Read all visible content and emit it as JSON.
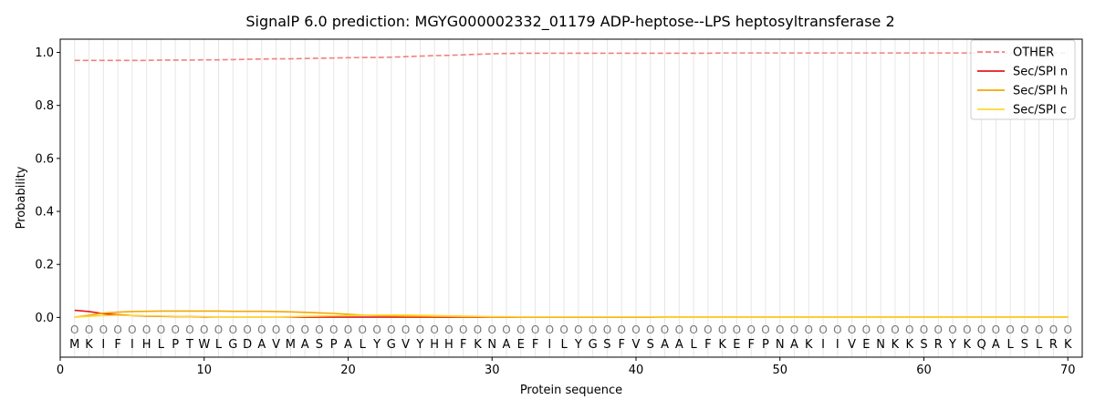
{
  "chart_data": {
    "type": "line",
    "title": "SignalP 6.0 prediction: MGYG000002332_01179 ADP-heptose--LPS heptosyltransferase 2",
    "xlabel": "Protein sequence",
    "ylabel": "Probability",
    "xlim": [
      0,
      71
    ],
    "ylim": [
      -0.15,
      1.05
    ],
    "xticks": [
      0,
      10,
      20,
      30,
      40,
      50,
      60,
      70
    ],
    "yticks": [
      0.0,
      0.2,
      0.4,
      0.6,
      0.8,
      1.0
    ],
    "legend_position": "top-right",
    "sequence": [
      "M",
      "K",
      "I",
      "F",
      "I",
      "H",
      "L",
      "P",
      "T",
      "W",
      "L",
      "G",
      "D",
      "A",
      "V",
      "M",
      "A",
      "S",
      "P",
      "A",
      "L",
      "Y",
      "G",
      "V",
      "Y",
      "H",
      "H",
      "F",
      "K",
      "N",
      "A",
      "E",
      "F",
      "I",
      "L",
      "Y",
      "G",
      "S",
      "F",
      "V",
      "S",
      "A",
      "A",
      "L",
      "F",
      "K",
      "E",
      "F",
      "P",
      "N",
      "A",
      "K",
      "I",
      "I",
      "V",
      "E",
      "N",
      "K",
      "K",
      "S",
      "R",
      "Y",
      "K",
      "Q",
      "A",
      "L",
      "S",
      "L",
      "R",
      "K"
    ],
    "region_labels": [
      "O",
      "O",
      "O",
      "O",
      "O",
      "O",
      "O",
      "O",
      "O",
      "O",
      "O",
      "O",
      "O",
      "O",
      "O",
      "O",
      "O",
      "O",
      "O",
      "O",
      "O",
      "O",
      "O",
      "O",
      "O",
      "O",
      "O",
      "O",
      "O",
      "O",
      "O",
      "O",
      "O",
      "O",
      "O",
      "O",
      "O",
      "O",
      "O",
      "O",
      "O",
      "O",
      "O",
      "O",
      "O",
      "O",
      "O",
      "O",
      "O",
      "O",
      "O",
      "O",
      "O",
      "O",
      "O",
      "O",
      "O",
      "O",
      "O",
      "O",
      "O",
      "O",
      "O",
      "O",
      "O",
      "O",
      "O",
      "O",
      "O",
      "O"
    ],
    "series": [
      {
        "name": "OTHER",
        "color": "#f08080",
        "dash": true,
        "values": [
          0.97,
          0.97,
          0.97,
          0.97,
          0.97,
          0.97,
          0.971,
          0.971,
          0.971,
          0.972,
          0.972,
          0.973,
          0.974,
          0.975,
          0.976,
          0.976,
          0.977,
          0.978,
          0.979,
          0.98,
          0.981,
          0.981,
          0.982,
          0.984,
          0.986,
          0.988,
          0.989,
          0.991,
          0.993,
          0.995,
          0.996,
          0.997,
          0.997,
          0.997,
          0.997,
          0.997,
          0.997,
          0.997,
          0.997,
          0.997,
          0.997,
          0.997,
          0.997,
          0.997,
          0.997,
          0.998,
          0.998,
          0.998,
          0.998,
          0.998,
          0.998,
          0.998,
          0.998,
          0.998,
          0.998,
          0.998,
          0.998,
          0.998,
          0.998,
          0.998,
          0.998,
          0.998,
          0.998,
          0.998,
          0.998,
          0.998,
          0.998,
          0.998,
          0.998,
          0.998
        ]
      },
      {
        "name": "Sec/SPI n",
        "color": "#e41a1c",
        "dash": false,
        "values": [
          0.027,
          0.022,
          0.014,
          0.01,
          0.007,
          0.005,
          0.004,
          0.003,
          0.003,
          0.002,
          0.002,
          0.002,
          0.002,
          0.002,
          0.002,
          0.002,
          0.001,
          0.001,
          0.001,
          0.001,
          0.001,
          0.001,
          0.001,
          0.001,
          0.001,
          0.001,
          0.001,
          0.001,
          0.001,
          0.001,
          0.001,
          0.001,
          0.001,
          0.001,
          0.001,
          0.001,
          0.001,
          0.001,
          0.001,
          0.001,
          0.001,
          0.001,
          0.001,
          0.001,
          0.001,
          0.001,
          0.001,
          0.001,
          0.001,
          0.001,
          0.001,
          0.001,
          0.001,
          0.001,
          0.001,
          0.001,
          0.001,
          0.001,
          0.001,
          0.001,
          0.001,
          0.001,
          0.001,
          0.001,
          0.001,
          0.001,
          0.001,
          0.001,
          0.001,
          0.001
        ]
      },
      {
        "name": "Sec/SPI h",
        "color": "#f5a800",
        "dash": false,
        "values": [
          0.001,
          0.008,
          0.016,
          0.02,
          0.022,
          0.023,
          0.024,
          0.024,
          0.024,
          0.024,
          0.024,
          0.023,
          0.023,
          0.023,
          0.022,
          0.021,
          0.019,
          0.017,
          0.015,
          0.012,
          0.009,
          0.007,
          0.006,
          0.005,
          0.005,
          0.004,
          0.004,
          0.003,
          0.003,
          0.002,
          0.002,
          0.002,
          0.002,
          0.002,
          0.002,
          0.002,
          0.002,
          0.002,
          0.002,
          0.002,
          0.002,
          0.001,
          0.001,
          0.001,
          0.001,
          0.001,
          0.001,
          0.001,
          0.001,
          0.001,
          0.001,
          0.001,
          0.001,
          0.001,
          0.001,
          0.001,
          0.001,
          0.001,
          0.001,
          0.001,
          0.001,
          0.001,
          0.001,
          0.001,
          0.001,
          0.001,
          0.001,
          0.001,
          0.001,
          0.001
        ]
      },
      {
        "name": "Sec/SPI c",
        "color": "#ffd92f",
        "dash": false,
        "values": [
          0.001,
          0.004,
          0.007,
          0.008,
          0.007,
          0.006,
          0.005,
          0.004,
          0.003,
          0.003,
          0.002,
          0.002,
          0.002,
          0.002,
          0.002,
          0.003,
          0.004,
          0.005,
          0.006,
          0.007,
          0.008,
          0.009,
          0.009,
          0.009,
          0.008,
          0.007,
          0.006,
          0.005,
          0.004,
          0.003,
          0.003,
          0.002,
          0.002,
          0.002,
          0.002,
          0.002,
          0.002,
          0.002,
          0.002,
          0.002,
          0.002,
          0.001,
          0.001,
          0.001,
          0.001,
          0.001,
          0.001,
          0.001,
          0.001,
          0.001,
          0.001,
          0.001,
          0.001,
          0.001,
          0.001,
          0.001,
          0.001,
          0.001,
          0.001,
          0.001,
          0.001,
          0.001,
          0.001,
          0.001,
          0.001,
          0.001,
          0.001,
          0.001,
          0.001,
          0.001
        ]
      }
    ]
  }
}
